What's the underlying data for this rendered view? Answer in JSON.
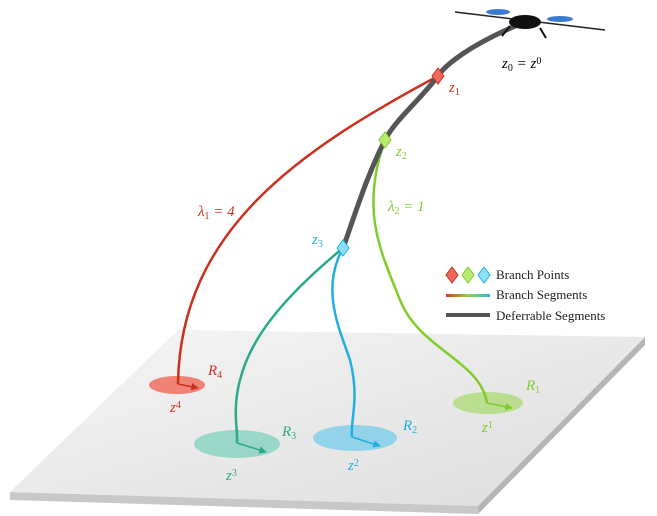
{
  "labels": {
    "root": [
      {
        "t": "z"
      },
      {
        "sub": "0"
      },
      {
        "t": " = z"
      },
      {
        "sup": "0"
      }
    ],
    "z1": [
      {
        "t": "z"
      },
      {
        "sub": "1"
      }
    ],
    "z2": [
      {
        "t": "z"
      },
      {
        "sub": "2"
      }
    ],
    "z3": [
      {
        "t": "z"
      },
      {
        "sub": "3"
      }
    ],
    "lambda1": [
      {
        "t": "λ"
      },
      {
        "sub": "1"
      },
      {
        "t": " = 4"
      }
    ],
    "lambda2": [
      {
        "t": "λ"
      },
      {
        "sub": "2"
      },
      {
        "t": " = 1"
      }
    ],
    "R1": [
      {
        "t": "R"
      },
      {
        "sub": "1"
      }
    ],
    "R2": [
      {
        "t": "R"
      },
      {
        "sub": "2"
      }
    ],
    "R3": [
      {
        "t": "R"
      },
      {
        "sub": "3"
      }
    ],
    "R4": [
      {
        "t": "R"
      },
      {
        "sub": "4"
      }
    ],
    "g1": [
      {
        "t": "z"
      },
      {
        "sup": "1"
      }
    ],
    "g2": [
      {
        "t": "z"
      },
      {
        "sup": "2"
      }
    ],
    "g3": [
      {
        "t": "z"
      },
      {
        "sup": "3"
      }
    ],
    "g4": [
      {
        "t": "z"
      },
      {
        "sup": "4"
      }
    ]
  },
  "legend": [
    "Branch Points",
    "Branch Segments",
    "Deferrable Segments"
  ]
}
